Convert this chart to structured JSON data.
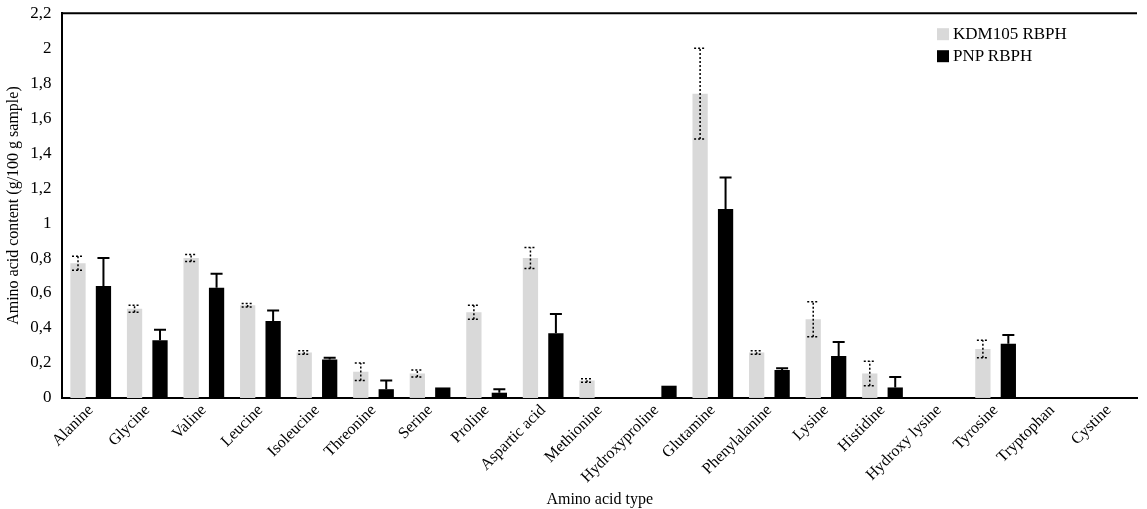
{
  "chart_data": {
    "type": "bar",
    "xlabel": "Amino acid type",
    "ylabel": "Amino acid content (g/100 g sample)",
    "categories": [
      "Alanine",
      "Glycine",
      "Valine",
      "Leucine",
      "Isoleucine",
      "Threonine",
      "Serine",
      "Proline",
      "Aspartic acid",
      "Methionine",
      "Hydroxyproline",
      "Glutamine",
      "Phenylalanine",
      "Lysine",
      "Histidine",
      "Hydroxy lysine",
      "Tyrosine",
      "Tryptophan",
      "Cystine"
    ],
    "series": [
      {
        "name": "KDM105 RBPH",
        "color": "#d9d9d9",
        "values": [
          0.77,
          0.51,
          0.8,
          0.53,
          0.26,
          0.15,
          0.14,
          0.49,
          0.8,
          0.1,
          0,
          1.74,
          0.26,
          0.45,
          0.14,
          0,
          0.28,
          0,
          0
        ],
        "errors": [
          0.04,
          0.02,
          0.02,
          0.01,
          0.01,
          0.05,
          0.02,
          0.04,
          0.06,
          0.01,
          null,
          0.26,
          0.01,
          0.1,
          0.07,
          null,
          0.05,
          null,
          null
        ]
      },
      {
        "name": "PNP RBPH",
        "color": "#000000",
        "values": [
          0.64,
          0.33,
          0.63,
          0.44,
          0.22,
          0.05,
          0.06,
          0.03,
          0.37,
          0,
          0.07,
          1.08,
          0.16,
          0.24,
          0.06,
          0,
          0.31,
          0,
          0
        ],
        "errors": [
          [
            0.64,
            0.8
          ],
          [
            0.33,
            0.39
          ],
          [
            0.63,
            0.71
          ],
          [
            0.44,
            0.5
          ],
          [
            0.22,
            0.23
          ],
          [
            0.05,
            0.1
          ],
          null,
          [
            0.03,
            0.05
          ],
          [
            0.37,
            0.48
          ],
          null,
          null,
          [
            1.08,
            1.26
          ],
          [
            0.16,
            0.17
          ],
          [
            0.24,
            0.32
          ],
          [
            0.06,
            0.12
          ],
          null,
          [
            0.31,
            0.36
          ],
          null,
          null
        ]
      }
    ],
    "ylim": [
      0,
      2.2
    ],
    "yticks": [
      0,
      {
        "value": 0.2,
        "label": "0,2"
      },
      {
        "value": 0.4,
        "label": "0,4"
      },
      {
        "value": 0.6,
        "label": "0,6"
      },
      {
        "value": 0.8,
        "label": "0,8"
      },
      1,
      {
        "value": 1.2,
        "label": "1,2"
      },
      {
        "value": 1.4,
        "label": "1,4"
      },
      {
        "value": 1.6,
        "label": "1,6"
      },
      {
        "value": 1.8,
        "label": "1,8"
      },
      2,
      {
        "value": 2.2,
        "label": "2,2"
      }
    ],
    "grid": false,
    "legend": "top right"
  }
}
